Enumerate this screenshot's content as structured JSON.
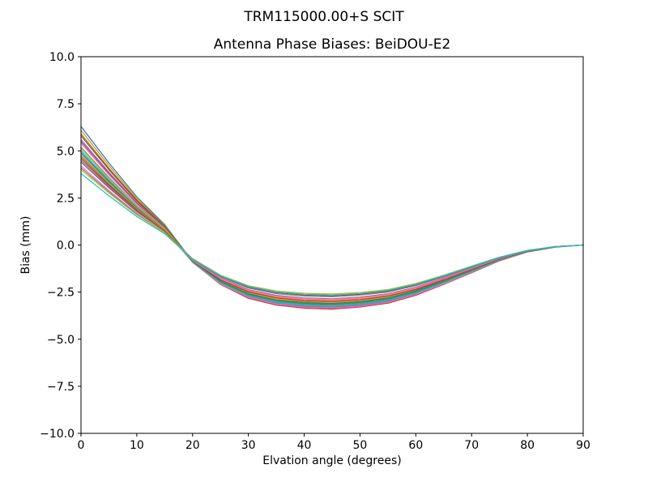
{
  "chart_data": {
    "type": "line",
    "suptitle": "TRM115000.00+S  SCIT",
    "title": "Antenna Phase Biases: BeiDOU-E2",
    "xlabel": "Elvation angle (degrees)",
    "ylabel": "Bias (mm)",
    "xlim": [
      0,
      90
    ],
    "ylim": [
      -10,
      10
    ],
    "grid": false,
    "legend": "none",
    "xticks": [
      0,
      10,
      20,
      30,
      40,
      50,
      60,
      70,
      80,
      90
    ],
    "xtick_labels": [
      "0",
      "10",
      "20",
      "30",
      "40",
      "50",
      "60",
      "70",
      "80",
      "90"
    ],
    "yticks": [
      10,
      7.5,
      5,
      2.5,
      0,
      -2.5,
      -5,
      -7.5,
      -10
    ],
    "ytick_labels": [
      "10.0",
      "7.5",
      "5.0",
      "2.5",
      "0.0",
      "−2.5",
      "−5.0",
      "−7.5",
      "−10.0"
    ],
    "x": [
      0,
      5,
      10,
      15,
      20,
      25,
      30,
      35,
      40,
      45,
      50,
      55,
      60,
      65,
      70,
      75,
      80,
      85,
      90
    ],
    "series": [
      {
        "color": "#1f77b4",
        "values": [
          6.3,
          4.36,
          2.56,
          1.09,
          -0.87,
          -2.03,
          -2.74,
          -3.1,
          -3.25,
          -3.3,
          -3.2,
          -3.0,
          -2.59,
          -2.03,
          -1.42,
          -0.81,
          -0.36,
          -0.1,
          0.0
        ]
      },
      {
        "color": "#ff7f0e",
        "values": [
          6.1,
          4.22,
          2.47,
          1.04,
          -0.9,
          -2.06,
          -2.78,
          -3.14,
          -3.3,
          -3.35,
          -3.25,
          -3.04,
          -2.63,
          -2.06,
          -1.44,
          -0.82,
          -0.36,
          -0.1,
          0.0
        ]
      },
      {
        "color": "#2ca02c",
        "values": [
          5.9,
          4.08,
          2.39,
          1.01,
          -0.87,
          -2.0,
          -2.7,
          -3.05,
          -3.2,
          -3.25,
          -3.15,
          -2.95,
          -2.55,
          -2.0,
          -1.4,
          -0.8,
          -0.35,
          -0.1,
          0.0
        ]
      },
      {
        "color": "#d62728",
        "values": [
          5.8,
          4.01,
          2.34,
          0.97,
          -0.92,
          -2.09,
          -2.83,
          -3.19,
          -3.35,
          -3.4,
          -3.29,
          -3.09,
          -2.67,
          -2.09,
          -1.47,
          -0.84,
          -0.37,
          -0.11,
          0.0
        ]
      },
      {
        "color": "#9467bd",
        "values": [
          5.6,
          3.87,
          2.26,
          0.94,
          -0.9,
          -2.03,
          -2.74,
          -3.1,
          -3.25,
          -3.3,
          -3.2,
          -3.0,
          -2.59,
          -2.03,
          -1.42,
          -0.81,
          -0.36,
          -0.1,
          0.0
        ]
      },
      {
        "color": "#8c564b",
        "values": [
          5.5,
          3.8,
          2.22,
          0.93,
          -0.85,
          -1.94,
          -2.62,
          -2.95,
          -3.1,
          -3.15,
          -3.05,
          -2.86,
          -2.47,
          -1.94,
          -1.36,
          -0.77,
          -0.34,
          -0.1,
          0.0
        ]
      },
      {
        "color": "#e377c2",
        "values": [
          5.4,
          3.73,
          2.17,
          0.89,
          -0.92,
          -2.06,
          -2.78,
          -3.14,
          -3.3,
          -3.35,
          -3.25,
          -3.04,
          -2.63,
          -2.06,
          -1.44,
          -0.82,
          -0.36,
          -0.1,
          0.0
        ]
      },
      {
        "color": "#7f7f7f",
        "values": [
          5.2,
          3.59,
          2.09,
          0.86,
          -0.88,
          -1.97,
          -2.66,
          -3.0,
          -3.15,
          -3.2,
          -3.1,
          -2.91,
          -2.51,
          -1.97,
          -1.38,
          -0.79,
          -0.35,
          -0.1,
          0.0
        ]
      },
      {
        "color": "#bcbd22",
        "values": [
          5.1,
          3.52,
          2.06,
          0.85,
          -0.83,
          -1.88,
          -2.53,
          -2.86,
          -3.0,
          -3.05,
          -2.96,
          -2.77,
          -2.39,
          -1.88,
          -1.31,
          -0.75,
          -0.33,
          -0.09,
          0.0
        ]
      },
      {
        "color": "#17becf",
        "values": [
          5.0,
          3.45,
          2.0,
          0.81,
          -0.91,
          -2.0,
          -2.7,
          -3.05,
          -3.2,
          -3.25,
          -3.15,
          -2.95,
          -2.55,
          -2.0,
          -1.4,
          -0.8,
          -0.35,
          -0.1,
          0.0
        ]
      },
      {
        "color": "#1f77b4",
        "values": [
          4.9,
          3.38,
          1.97,
          0.8,
          -0.86,
          -1.91,
          -2.58,
          -2.91,
          -3.05,
          -3.1,
          -3.0,
          -2.81,
          -2.43,
          -1.91,
          -1.34,
          -0.76,
          -0.33,
          -0.1,
          0.0
        ]
      },
      {
        "color": "#ff7f0e",
        "values": [
          4.8,
          3.32,
          1.93,
          0.79,
          -0.81,
          -1.81,
          -2.45,
          -2.77,
          -2.91,
          -2.95,
          -2.86,
          -2.68,
          -2.32,
          -1.81,
          -1.27,
          -0.73,
          -0.32,
          -0.09,
          0.0
        ]
      },
      {
        "color": "#2ca02c",
        "values": [
          4.7,
          3.24,
          1.88,
          0.75,
          -0.88,
          -1.94,
          -2.62,
          -2.95,
          -3.1,
          -3.15,
          -3.05,
          -2.86,
          -2.47,
          -1.94,
          -1.36,
          -0.77,
          -0.34,
          -0.1,
          0.0
        ]
      },
      {
        "color": "#d62728",
        "values": [
          4.6,
          3.17,
          1.84,
          0.74,
          -0.84,
          -1.85,
          -2.49,
          -2.81,
          -2.96,
          -3.0,
          -2.91,
          -2.72,
          -2.36,
          -1.85,
          -1.29,
          -0.74,
          -0.32,
          -0.09,
          0.0
        ]
      },
      {
        "color": "#9467bd",
        "values": [
          4.5,
          3.11,
          1.81,
          0.73,
          -0.79,
          -1.75,
          -2.37,
          -2.67,
          -2.81,
          -2.85,
          -2.76,
          -2.59,
          -2.24,
          -1.75,
          -1.23,
          -0.7,
          -0.31,
          -0.09,
          0.0
        ]
      },
      {
        "color": "#8c564b",
        "values": [
          4.4,
          3.04,
          1.77,
          0.73,
          -0.74,
          -1.66,
          -2.24,
          -2.53,
          -2.66,
          -2.7,
          -2.62,
          -2.45,
          -2.12,
          -1.66,
          -1.16,
          -0.66,
          -0.29,
          -0.08,
          0.0
        ]
      },
      {
        "color": "#e377c2",
        "values": [
          4.2,
          2.9,
          1.68,
          0.66,
          -0.82,
          -1.78,
          -2.41,
          -2.72,
          -2.86,
          -2.9,
          -2.81,
          -2.63,
          -2.28,
          -1.78,
          -1.25,
          -0.71,
          -0.31,
          -0.09,
          0.0
        ]
      },
      {
        "color": "#7f7f7f",
        "values": [
          4.1,
          2.83,
          1.64,
          0.65,
          -0.77,
          -1.69,
          -2.29,
          -2.58,
          -2.71,
          -2.75,
          -2.66,
          -2.5,
          -2.16,
          -1.69,
          -1.19,
          -0.68,
          -0.3,
          -0.09,
          0.0
        ]
      },
      {
        "color": "#bcbd22",
        "values": [
          4.0,
          2.76,
          1.6,
          0.65,
          -0.72,
          -1.6,
          -2.16,
          -2.44,
          -2.56,
          -2.6,
          -2.52,
          -2.36,
          -2.04,
          -1.6,
          -1.12,
          -0.64,
          -0.28,
          -0.08,
          0.0
        ]
      },
      {
        "color": "#17becf",
        "values": [
          3.8,
          2.62,
          1.51,
          0.6,
          -0.75,
          -1.63,
          -2.2,
          -2.49,
          -2.61,
          -2.65,
          -2.57,
          -2.41,
          -2.08,
          -1.63,
          -1.14,
          -0.65,
          -0.29,
          -0.08,
          0.0
        ]
      }
    ]
  }
}
